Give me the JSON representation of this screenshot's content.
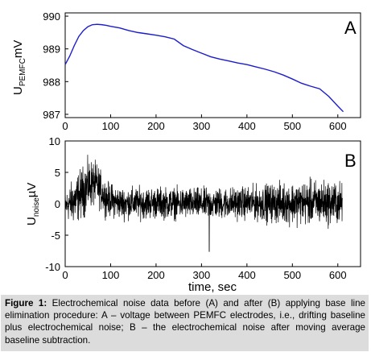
{
  "chart_data": [
    {
      "type": "line",
      "panel_label": "A",
      "ylabel": "U",
      "ylabel_sub": "PEMFC",
      "ylabel_unit": "mV",
      "xlim": [
        0,
        650
      ],
      "ylim": [
        986.9,
        990.1
      ],
      "xticks": [
        0,
        100,
        200,
        300,
        400,
        500,
        600
      ],
      "yticks": [
        987,
        988,
        989,
        990
      ],
      "line_color": "#1c1ccd",
      "series": [
        {
          "x": [
            0,
            10,
            20,
            30,
            40,
            50,
            60,
            70,
            80,
            90,
            100,
            120,
            140,
            160,
            180,
            200,
            220,
            240,
            260,
            280,
            300,
            320,
            340,
            360,
            380,
            400,
            420,
            440,
            460,
            480,
            500,
            520,
            540,
            560,
            580,
            600,
            612
          ],
          "y": [
            988.52,
            988.78,
            989.1,
            989.38,
            989.56,
            989.68,
            989.74,
            989.75,
            989.74,
            989.72,
            989.69,
            989.64,
            989.56,
            989.5,
            989.46,
            989.42,
            989.37,
            989.3,
            989.1,
            988.98,
            988.87,
            988.76,
            988.69,
            988.63,
            988.57,
            988.52,
            988.45,
            988.38,
            988.3,
            988.2,
            988.08,
            987.95,
            987.86,
            987.78,
            987.55,
            987.25,
            987.08
          ]
        }
      ]
    },
    {
      "type": "line",
      "panel_label": "B",
      "ylabel": "U",
      "ylabel_sub": "noise",
      "ylabel_unit": "µV",
      "xlabel": "time, sec",
      "xlim": [
        0,
        650
      ],
      "ylim": [
        -10,
        10
      ],
      "xticks": [
        0,
        100,
        200,
        300,
        400,
        500,
        600
      ],
      "yticks": [
        -10,
        -5,
        0,
        5,
        10
      ],
      "line_color": "#000000",
      "series": [
        {
          "x_range": [
            0,
            610
          ],
          "envelope_x": [
            0,
            20,
            40,
            55,
            70,
            90,
            120,
            200,
            300,
            400,
            450,
            500,
            550,
            600,
            610
          ],
          "envelope_upper": [
            2.5,
            5.5,
            7.5,
            8.5,
            7.5,
            4.5,
            3.5,
            3.5,
            3.3,
            3.6,
            4.2,
            4.6,
            5.0,
            4.8,
            4.2
          ],
          "envelope_lower": [
            -3.2,
            -4.6,
            -3.5,
            -2.0,
            -1.5,
            -2.8,
            -3.3,
            -3.2,
            -3.3,
            -3.3,
            -4.0,
            -4.3,
            -4.6,
            -4.5,
            -4.0
          ],
          "spikes": [
            {
              "x": 317,
              "y": -7.6
            }
          ]
        }
      ]
    }
  ],
  "caption": {
    "label": "Figure 1:",
    "text": " Electrochemical noise data before (A) and after (B) applying base line elimination procedure: A – voltage between PEMFC electrodes, i.e., drifting baseline plus electrochemical noise; B – the electrochemical noise after moving average baseline subtraction."
  }
}
